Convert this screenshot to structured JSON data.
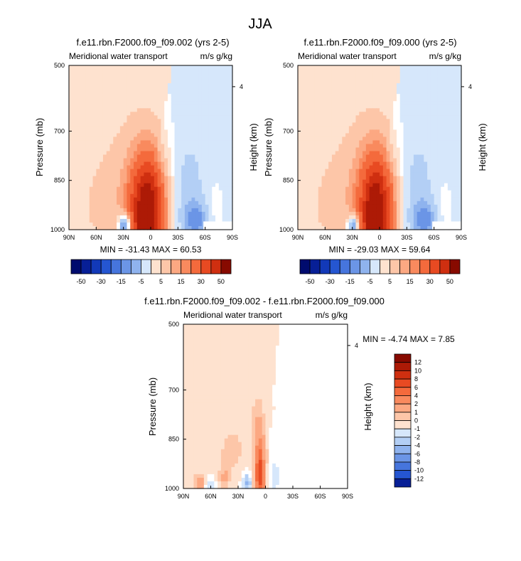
{
  "figure_title": "JJA",
  "colors": {
    "positive": [
      "#ffffff",
      "#fee2cf",
      "#fdc6a8",
      "#fca882",
      "#f98a5e",
      "#f46a3c",
      "#e84a22",
      "#cf2f10",
      "#ad1a06",
      "#870a00"
    ],
    "negative": [
      "#ffffff",
      "#d6e7fb",
      "#b3cff5",
      "#8fb3ee",
      "#6b95e6",
      "#4675dd",
      "#2556d1",
      "#1239b8",
      "#071f96",
      "#000b6e"
    ],
    "missing": "#ffffff"
  },
  "chart_data": [
    {
      "type": "heatmap",
      "title": "f.e11.rbn.F2000.f09_f09.002 (yrs 2-5)",
      "left_label": "Meridional water transport",
      "right_label": "m/s g/kg",
      "xlabel": "",
      "ylabel": "Pressure (mb)",
      "y2label": "Height (km)",
      "x_ticks": [
        "90N",
        "60N",
        "30N",
        "0",
        "30S",
        "60S",
        "90S"
      ],
      "y_ticks": [
        "500",
        "700",
        "850",
        "1000"
      ],
      "y2_ticks": [
        "4"
      ],
      "xlim": [
        90,
        -90
      ],
      "ylim": [
        1000,
        500
      ],
      "min_max_text": "MIN = -31.43   MAX =  60.53",
      "field": {
        "blobs": [
          {
            "lat": 4,
            "p": 975,
            "slat": 13,
            "sp": 130,
            "amp": 60.53
          },
          {
            "lat": -1,
            "p": 870,
            "slat": 11,
            "sp": 55,
            "amp": 6
          },
          {
            "lat": 33,
            "p": 880,
            "slat": 22,
            "sp": 150,
            "amp": 5
          },
          {
            "lat": 8,
            "p": 760,
            "slat": 22,
            "sp": 190,
            "amp": 1.8
          },
          {
            "lat": 63,
            "p": 930,
            "slat": 18,
            "sp": 90,
            "amp": 2.5
          },
          {
            "lat": -42,
            "p": 890,
            "slat": 12,
            "sp": 120,
            "amp": -6
          },
          {
            "lat": -50,
            "p": 975,
            "slat": 9,
            "sp": 40,
            "amp": -14
          },
          {
            "lat": 28,
            "p": 990,
            "slat": 5,
            "sp": 25,
            "amp": -31.43
          },
          {
            "lat": -70,
            "p": 940,
            "slat": 6,
            "sp": 60,
            "amp": 2.2
          }
        ],
        "background": {
          "north": 1.4,
          "south": -1.6,
          "split_lat": 8,
          "split_tilt": 32
        },
        "missing_box": {
          "lat1": -58,
          "lat2": -90,
          "p1": 975,
          "p2": 1000
        }
      },
      "colorbar": {
        "orientation": "horizontal",
        "levels": [
          -50,
          -40,
          -30,
          -20,
          -15,
          -10,
          -5,
          -1,
          1,
          5,
          10,
          15,
          20,
          30,
          40,
          50
        ],
        "labels": [
          "-50",
          "-30",
          "-15",
          "-5",
          "5",
          "15",
          "30",
          "50"
        ]
      }
    },
    {
      "type": "heatmap",
      "title": "f.e11.rbn.F2000.f09_f09.000 (yrs 2-5)",
      "left_label": "Meridional water transport",
      "right_label": "m/s g/kg",
      "xlabel": "",
      "ylabel": "Pressure (mb)",
      "y2label": "Height (km)",
      "x_ticks": [
        "90N",
        "60N",
        "30N",
        "0",
        "30S",
        "60S",
        "90S"
      ],
      "y_ticks": [
        "500",
        "700",
        "850",
        "1000"
      ],
      "y2_ticks": [
        "4"
      ],
      "xlim": [
        90,
        -90
      ],
      "ylim": [
        1000,
        500
      ],
      "min_max_text": "MIN = -29.03   MAX =  59.64",
      "field": {
        "blobs": [
          {
            "lat": 4,
            "p": 975,
            "slat": 13,
            "sp": 130,
            "amp": 59.64
          },
          {
            "lat": -1,
            "p": 870,
            "slat": 11,
            "sp": 55,
            "amp": 6
          },
          {
            "lat": 33,
            "p": 880,
            "slat": 22,
            "sp": 150,
            "amp": 5
          },
          {
            "lat": 8,
            "p": 760,
            "slat": 22,
            "sp": 190,
            "amp": 1.8
          },
          {
            "lat": 63,
            "p": 930,
            "slat": 18,
            "sp": 90,
            "amp": 2.5
          },
          {
            "lat": -42,
            "p": 890,
            "slat": 12,
            "sp": 120,
            "amp": -6
          },
          {
            "lat": -50,
            "p": 975,
            "slat": 9,
            "sp": 40,
            "amp": -14
          },
          {
            "lat": 28,
            "p": 990,
            "slat": 5,
            "sp": 25,
            "amp": -29.03
          },
          {
            "lat": -70,
            "p": 940,
            "slat": 6,
            "sp": 60,
            "amp": 2.2
          }
        ],
        "background": {
          "north": 1.4,
          "south": -1.6,
          "split_lat": 8,
          "split_tilt": 32
        },
        "missing_box": {
          "lat1": -58,
          "lat2": -90,
          "p1": 975,
          "p2": 1000
        }
      },
      "colorbar": {
        "orientation": "horizontal",
        "levels": [
          -50,
          -40,
          -30,
          -20,
          -15,
          -10,
          -5,
          -1,
          1,
          5,
          10,
          15,
          20,
          30,
          40,
          50
        ],
        "labels": [
          "-50",
          "-30",
          "-15",
          "-5",
          "5",
          "15",
          "30",
          "50"
        ]
      }
    },
    {
      "type": "heatmap",
      "title": "f.e11.rbn.F2000.f09_f09.002 - f.e11.rbn.F2000.f09_f09.000",
      "left_label": "Meridional water transport",
      "right_label": "m/s g/kg",
      "xlabel": "",
      "ylabel": "Pressure (mb)",
      "y2label": "Height (km)",
      "x_ticks": [
        "90N",
        "60N",
        "30N",
        "0",
        "30S",
        "60S",
        "90S"
      ],
      "y_ticks": [
        "500",
        "700",
        "850",
        "1000"
      ],
      "y2_ticks": [
        "4"
      ],
      "xlim": [
        90,
        -90
      ],
      "ylim": [
        1000,
        500
      ],
      "min_max_text": "MIN =  -4.74   MAX =   7.85",
      "field": {
        "blobs": [
          {
            "lat": 6,
            "p": 960,
            "slat": 3.5,
            "sp": 70,
            "amp": 7.85
          },
          {
            "lat": 8,
            "p": 860,
            "slat": 5,
            "sp": 80,
            "amp": 2.0
          },
          {
            "lat": 45,
            "p": 950,
            "slat": 4,
            "sp": 70,
            "amp": 1.8
          },
          {
            "lat": 72,
            "p": 985,
            "slat": 4,
            "sp": 20,
            "amp": 3.0
          },
          {
            "lat": 20,
            "p": 985,
            "slat": 3,
            "sp": 20,
            "amp": -4.74
          },
          {
            "lat": 60,
            "p": 990,
            "slat": 4,
            "sp": 15,
            "amp": -2.2
          },
          {
            "lat": -10,
            "p": 975,
            "slat": 4,
            "sp": 40,
            "amp": -1.4
          },
          {
            "lat": 35,
            "p": 880,
            "slat": 5,
            "sp": 40,
            "amp": 1.3
          }
        ],
        "background": {
          "north": 0.5,
          "south": -0.5,
          "split_lat": 0,
          "split_tilt": 15,
          "stripes": 1
        },
        "missing_box": {
          "lat1": -50,
          "lat2": -90,
          "p1": 985,
          "p2": 1000
        }
      },
      "colorbar": {
        "orientation": "vertical",
        "levels": [
          -14,
          -12,
          -10,
          -8,
          -6,
          -4,
          -2,
          -1,
          0,
          1,
          2,
          4,
          6,
          8,
          10,
          12,
          14
        ],
        "labels": [
          "12",
          "10",
          "8",
          "6",
          "4",
          "2",
          "1",
          "0",
          "-1",
          "-2",
          "-4",
          "-6",
          "-8",
          "-10",
          "-12"
        ]
      }
    }
  ]
}
